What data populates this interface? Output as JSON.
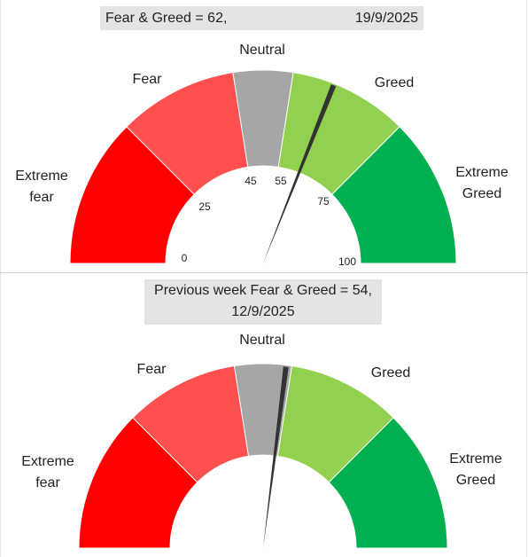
{
  "current": {
    "title": "Fear & Greed = 62,",
    "date": "19/9/2025",
    "value": 62
  },
  "previous": {
    "title_line1": "Previous week Fear & Greed = 54,",
    "title_line2": "12/9/2025",
    "value": 54
  },
  "zone_labels": {
    "extreme_fear_1": "Extreme",
    "extreme_fear_2": "fear",
    "fear": "Fear",
    "neutral": "Neutral",
    "greed": "Greed",
    "extreme_greed_1": "Extreme",
    "extreme_greed_2": "Greed"
  },
  "tick_labels": [
    "0",
    "25",
    "45",
    "55",
    "75",
    "100"
  ],
  "colors": {
    "extreme_fear": "#ff0000",
    "fear": "#ff5050",
    "neutral": "#a6a6a6",
    "greed": "#92d050",
    "extreme_greed": "#00b050",
    "needle": "#333333"
  },
  "chart_data": [
    {
      "type": "gauge",
      "range": [
        0,
        100
      ],
      "bands": [
        {
          "name": "Extreme fear",
          "from": 0,
          "to": 25
        },
        {
          "name": "Fear",
          "from": 25,
          "to": 45
        },
        {
          "name": "Neutral",
          "from": 45,
          "to": 55
        },
        {
          "name": "Greed",
          "from": 55,
          "to": 75
        },
        {
          "name": "Extreme Greed",
          "from": 75,
          "to": 100
        }
      ],
      "value": 62,
      "title": "Fear & Greed = 62,",
      "date": "19/9/2025",
      "tick_labels": [
        0,
        25,
        45,
        55,
        75,
        100
      ]
    },
    {
      "type": "gauge",
      "range": [
        0,
        100
      ],
      "bands": [
        {
          "name": "Extreme fear",
          "from": 0,
          "to": 25
        },
        {
          "name": "Fear",
          "from": 25,
          "to": 45
        },
        {
          "name": "Neutral",
          "from": 45,
          "to": 55
        },
        {
          "name": "Greed",
          "from": 55,
          "to": 75
        },
        {
          "name": "Extreme Greed",
          "from": 75,
          "to": 100
        }
      ],
      "value": 54,
      "title": "Previous week Fear & Greed = 54,",
      "date": "12/9/2025"
    }
  ]
}
